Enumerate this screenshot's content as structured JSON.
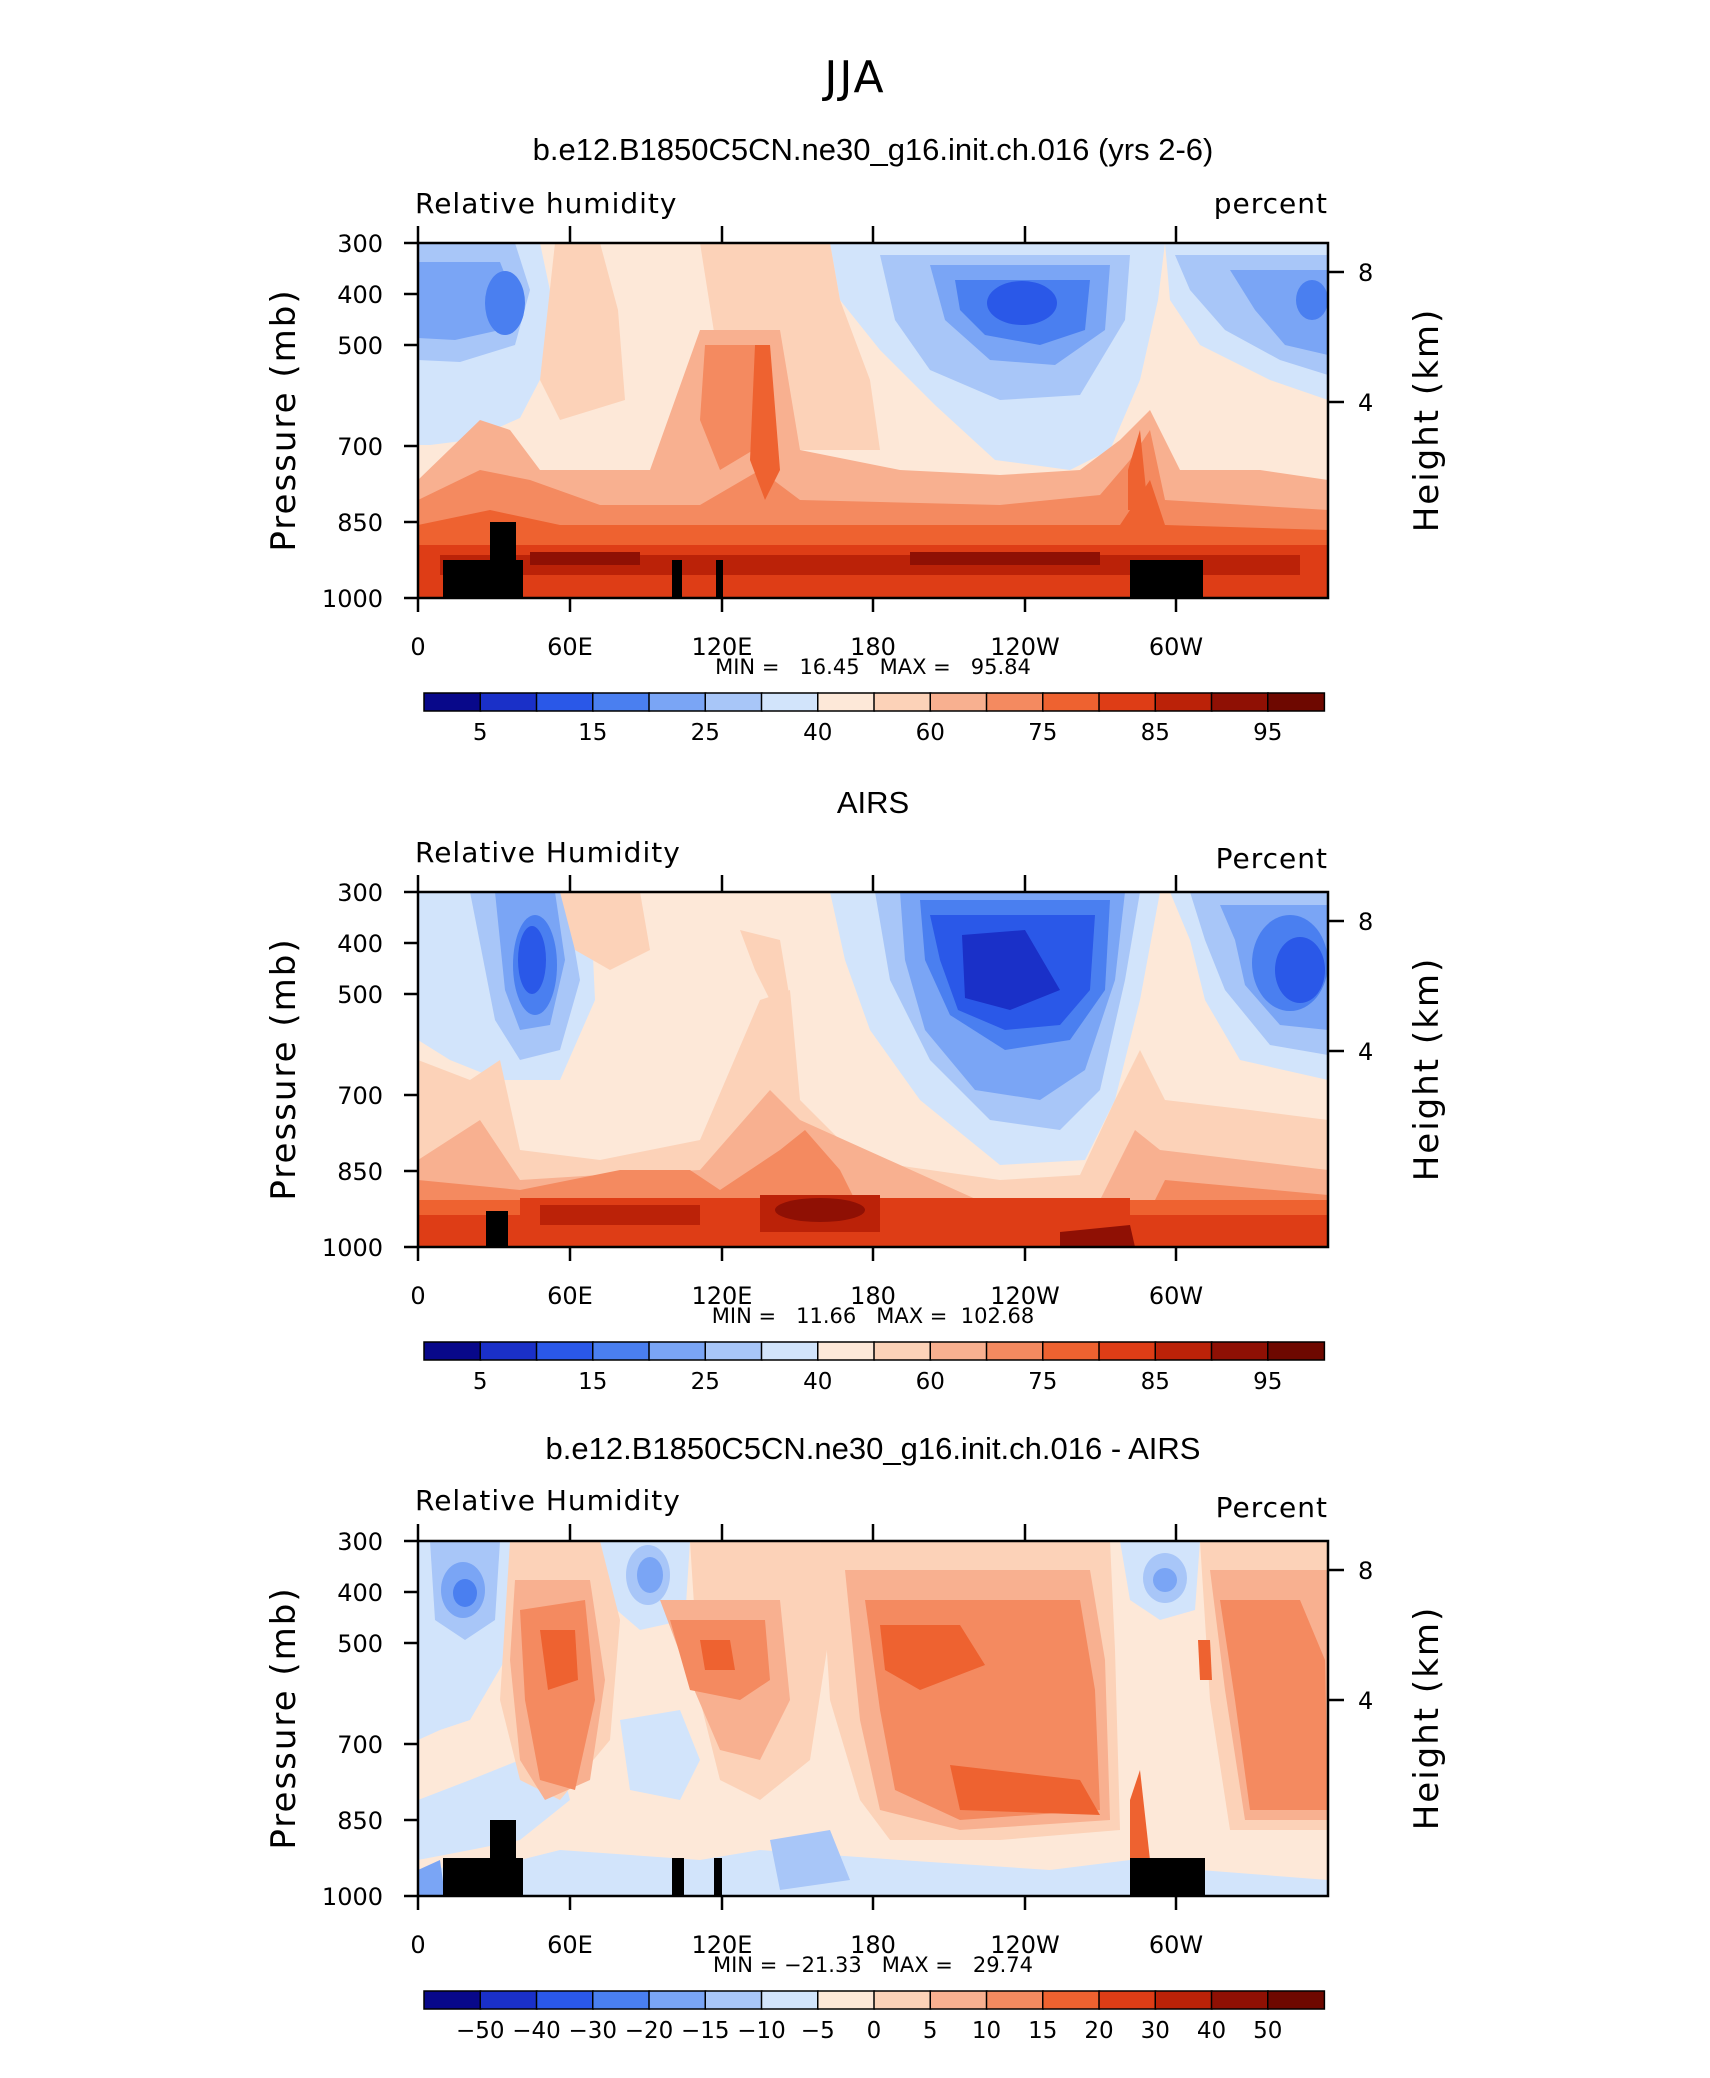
{
  "figure_title": "JJA",
  "chart_data": [
    {
      "type": "heatmap",
      "title": "b.e12.B1850C5CN.ne30_g16.init.ch.016 (yrs 2-6)",
      "left_label": "Relative humidity",
      "right_label": "percent",
      "ylabel": "Pressure (mb)",
      "ylabel_right": "Height (km)",
      "x_ticks": [
        "0",
        "60E",
        "120E",
        "180",
        "120W",
        "60W"
      ],
      "y_ticks": [
        "300",
        "400",
        "500",
        "700",
        "850",
        "1000"
      ],
      "y_right_ticks": [
        "8",
        "4"
      ],
      "min_label": "MIN =",
      "min_value": "16.45",
      "max_label": "MAX =",
      "max_value": "95.84",
      "stat_text": "MIN =   16.45   MAX =   95.84",
      "colorbar_labels": [
        "5",
        "15",
        "25",
        "40",
        "60",
        "75",
        "85",
        "95"
      ]
    },
    {
      "type": "heatmap",
      "title": "AIRS",
      "left_label": "Relative Humidity",
      "right_label": "Percent",
      "ylabel": "Pressure (mb)",
      "ylabel_right": "Height (km)",
      "x_ticks": [
        "0",
        "60E",
        "120E",
        "180",
        "120W",
        "60W"
      ],
      "y_ticks": [
        "300",
        "400",
        "500",
        "700",
        "850",
        "1000"
      ],
      "y_right_ticks": [
        "8",
        "4"
      ],
      "min_label": "MIN =",
      "min_value": "11.66",
      "max_label": "MAX =",
      "max_value": "102.68",
      "stat_text": "MIN =   11.66   MAX =  102.68",
      "colorbar_labels": [
        "5",
        "15",
        "25",
        "40",
        "60",
        "75",
        "85",
        "95"
      ]
    },
    {
      "type": "heatmap",
      "title": "b.e12.B1850C5CN.ne30_g16.init.ch.016 - AIRS",
      "left_label": "Relative Humidity",
      "right_label": "Percent",
      "ylabel": "Pressure (mb)",
      "ylabel_right": "Height (km)",
      "x_ticks": [
        "0",
        "60E",
        "120E",
        "180",
        "120W",
        "60W"
      ],
      "y_ticks": [
        "300",
        "400",
        "500",
        "700",
        "850",
        "1000"
      ],
      "y_right_ticks": [
        "8",
        "4"
      ],
      "min_label": "MIN =",
      "min_value": "-21.33",
      "max_label": "MAX =",
      "max_value": "29.74",
      "stat_text": "MIN = −21.33   MAX =   29.74",
      "colorbar_labels": [
        "-50",
        "-40",
        "-30",
        "-20",
        "-15",
        "-10",
        "-5",
        "0",
        "5",
        "10",
        "15",
        "20",
        "30",
        "40",
        "50"
      ]
    }
  ],
  "colors": {
    "scale": [
      "#08088a",
      "#1a30c8",
      "#2a58e8",
      "#4a7ff0",
      "#7aa5f5",
      "#a8c6f8",
      "#d2e4fb",
      "#fde8d8",
      "#fcd2b8",
      "#f8b090",
      "#f48a60",
      "#ee6230",
      "#de3d16",
      "#bb2208",
      "#8f1004",
      "#6e0800"
    ],
    "terrain": "#000000"
  }
}
